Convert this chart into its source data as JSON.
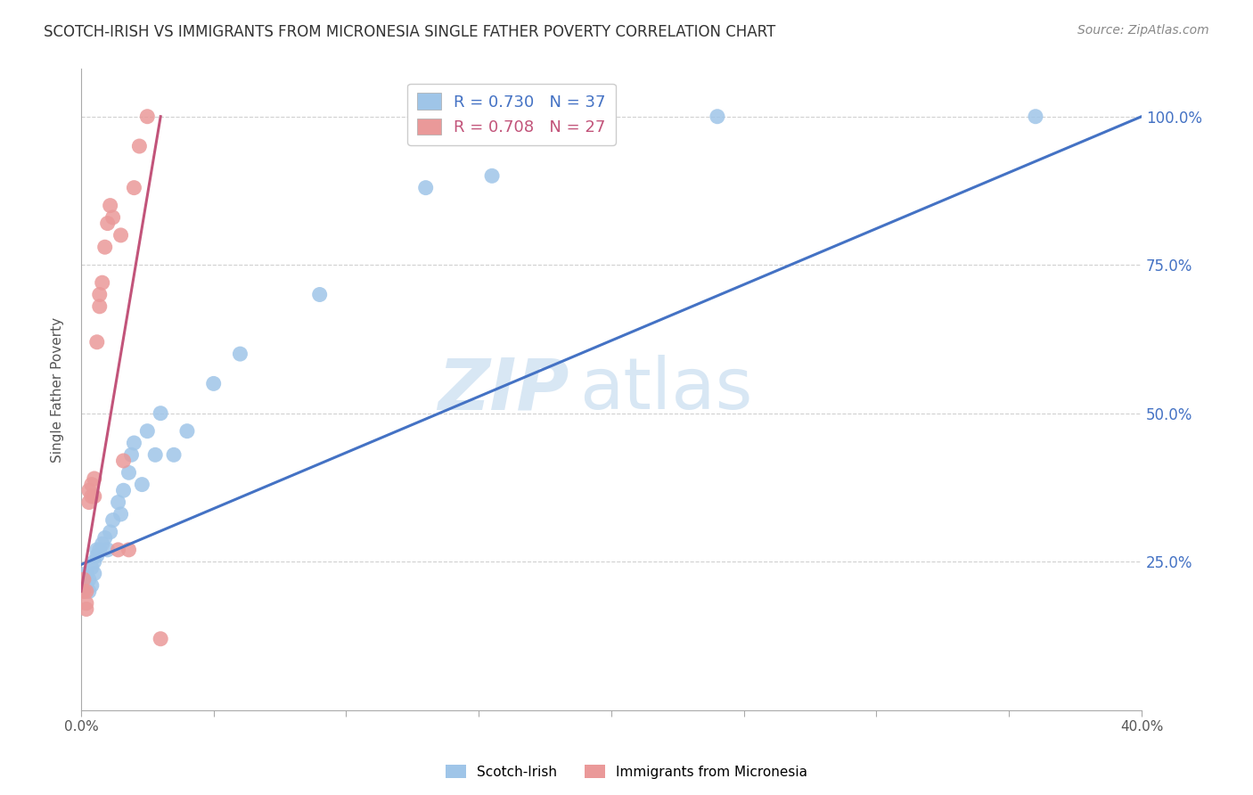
{
  "title": "SCOTCH-IRISH VS IMMIGRANTS FROM MICRONESIA SINGLE FATHER POVERTY CORRELATION CHART",
  "source_text": "Source: ZipAtlas.com",
  "ylabel": "Single Father Poverty",
  "watermark_zip": "ZIP",
  "watermark_atlas": "atlas",
  "right_ytick_labels": [
    "25.0%",
    "50.0%",
    "75.0%",
    "100.0%"
  ],
  "right_ytick_values": [
    0.25,
    0.5,
    0.75,
    1.0
  ],
  "xmin": 0.0,
  "xmax": 0.4,
  "ymin": 0.0,
  "ymax": 1.08,
  "legend_R1": "0.730",
  "legend_N1": "37",
  "legend_R2": "0.708",
  "legend_N2": "27",
  "color_blue": "#9fc5e8",
  "color_pink": "#ea9999",
  "color_line_blue": "#4472c4",
  "color_line_pink": "#c2547a",
  "color_right_axis": "#4472c4",
  "scotch_irish_x": [
    0.001,
    0.001,
    0.002,
    0.002,
    0.003,
    0.003,
    0.004,
    0.004,
    0.005,
    0.005,
    0.006,
    0.006,
    0.007,
    0.008,
    0.009,
    0.01,
    0.011,
    0.012,
    0.014,
    0.015,
    0.016,
    0.018,
    0.019,
    0.02,
    0.023,
    0.025,
    0.028,
    0.03,
    0.035,
    0.04,
    0.05,
    0.06,
    0.09,
    0.13,
    0.155,
    0.24,
    0.36
  ],
  "scotch_irish_y": [
    0.2,
    0.22,
    0.21,
    0.23,
    0.2,
    0.22,
    0.21,
    0.24,
    0.23,
    0.25,
    0.26,
    0.27,
    0.27,
    0.28,
    0.29,
    0.27,
    0.3,
    0.32,
    0.35,
    0.33,
    0.37,
    0.4,
    0.43,
    0.45,
    0.38,
    0.47,
    0.43,
    0.5,
    0.43,
    0.47,
    0.55,
    0.6,
    0.7,
    0.88,
    0.9,
    1.0,
    1.0
  ],
  "micronesia_x": [
    0.001,
    0.001,
    0.002,
    0.002,
    0.002,
    0.003,
    0.003,
    0.004,
    0.004,
    0.005,
    0.005,
    0.006,
    0.007,
    0.007,
    0.008,
    0.009,
    0.01,
    0.011,
    0.012,
    0.014,
    0.015,
    0.016,
    0.018,
    0.02,
    0.022,
    0.025,
    0.03
  ],
  "micronesia_y": [
    0.2,
    0.22,
    0.17,
    0.18,
    0.2,
    0.35,
    0.37,
    0.36,
    0.38,
    0.36,
    0.39,
    0.62,
    0.68,
    0.7,
    0.72,
    0.78,
    0.82,
    0.85,
    0.83,
    0.27,
    0.8,
    0.42,
    0.27,
    0.88,
    0.95,
    1.0,
    0.12
  ],
  "blue_line_x": [
    0.0,
    0.4
  ],
  "blue_line_y": [
    0.245,
    1.0
  ],
  "pink_line_x": [
    0.0,
    0.03
  ],
  "pink_line_y": [
    0.2,
    1.0
  ]
}
